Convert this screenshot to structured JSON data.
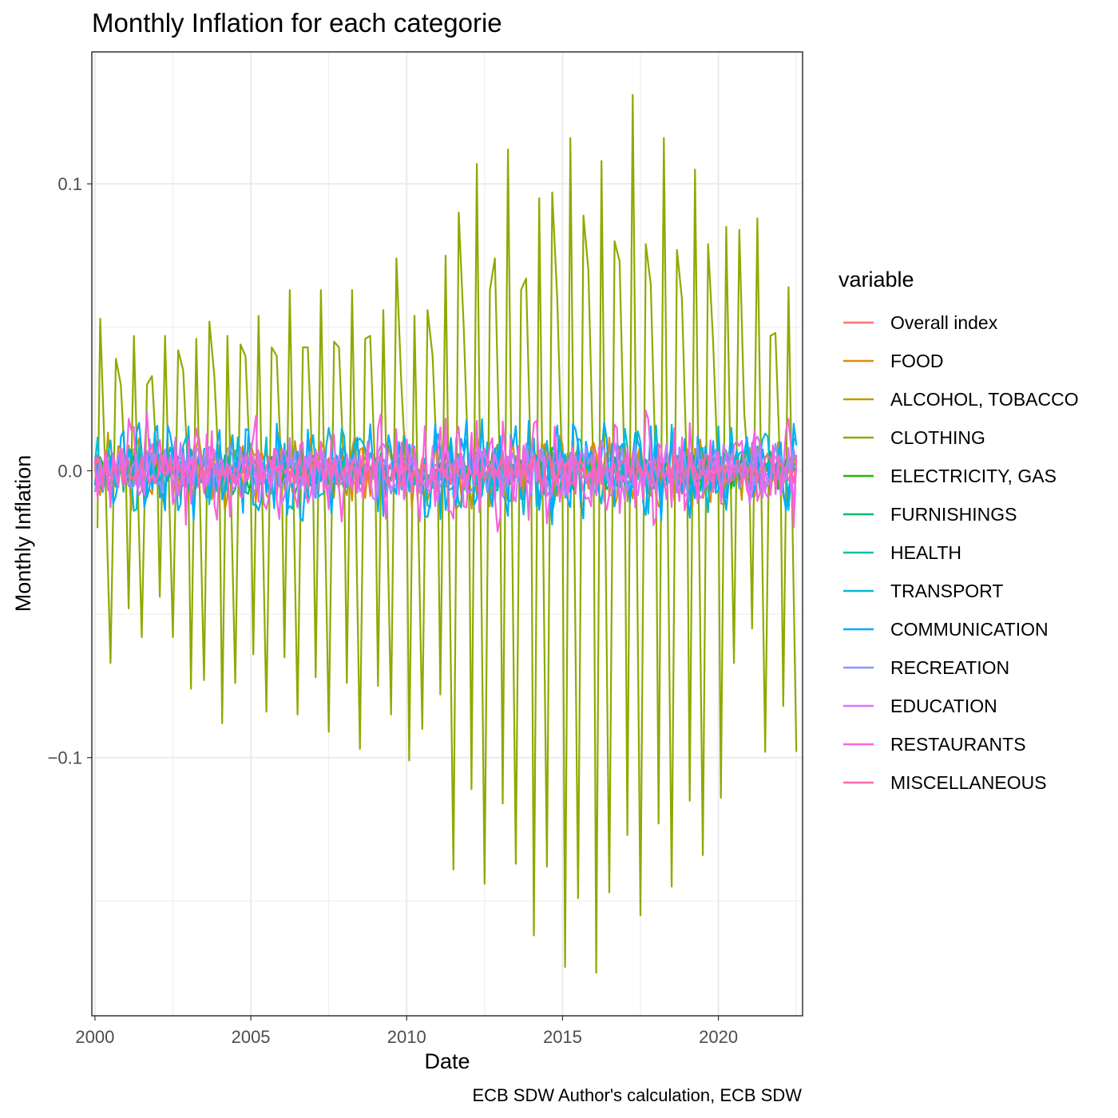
{
  "chart_data": {
    "type": "line",
    "title": "Monthly Inflation for each categorie",
    "xlabel": "Date",
    "ylabel": "Monthly Inflation",
    "caption": "ECB SDW Author's calculation, ECB SDW",
    "legend_title": "variable",
    "legend_position": "right",
    "grid": true,
    "xlim": [
      1999.9,
      2022.7
    ],
    "ylim": [
      -0.19,
      0.146
    ],
    "x_ticks": [
      2000,
      2005,
      2010,
      2015,
      2020
    ],
    "x_tick_labels": [
      "2000",
      "2005",
      "2010",
      "2015",
      "2020"
    ],
    "y_ticks": [
      -0.1,
      0.0,
      0.1
    ],
    "y_tick_labels": [
      "−0.1",
      "0.0",
      "0.1"
    ],
    "x_range": [
      2000.0,
      2022.5
    ],
    "series": [
      {
        "name": "Overall index",
        "color": "#F8766D",
        "amplitude": 0.004,
        "seed": 1
      },
      {
        "name": "FOOD",
        "color": "#E18A00",
        "amplitude": 0.01,
        "seed": 2
      },
      {
        "name": "ALCOHOL, TOBACCO",
        "color": "#BE9C00",
        "amplitude": 0.012,
        "seed": 3
      },
      {
        "name": "CLOTHING",
        "color": "#8CAB00",
        "amplitude": 0.05,
        "seed": 4,
        "points": [
          [
            2000.08,
            -0.02
          ],
          [
            2000.17,
            0.053
          ],
          [
            2000.33,
            0.0
          ],
          [
            2000.5,
            -0.067
          ],
          [
            2000.67,
            0.039
          ],
          [
            2000.83,
            0.03
          ],
          [
            2001.0,
            -0.005
          ],
          [
            2001.08,
            -0.048
          ],
          [
            2001.25,
            0.047
          ],
          [
            2001.5,
            -0.058
          ],
          [
            2001.67,
            0.03
          ],
          [
            2001.83,
            0.033
          ],
          [
            2002.0,
            0.0
          ],
          [
            2002.08,
            -0.044
          ],
          [
            2002.25,
            0.047
          ],
          [
            2002.5,
            -0.058
          ],
          [
            2002.67,
            0.042
          ],
          [
            2002.83,
            0.035
          ],
          [
            2003.0,
            -0.005
          ],
          [
            2003.08,
            -0.076
          ],
          [
            2003.25,
            0.046
          ],
          [
            2003.5,
            -0.073
          ],
          [
            2003.67,
            0.052
          ],
          [
            2003.83,
            0.033
          ],
          [
            2004.0,
            -0.005
          ],
          [
            2004.08,
            -0.088
          ],
          [
            2004.25,
            0.047
          ],
          [
            2004.5,
            -0.074
          ],
          [
            2004.67,
            0.044
          ],
          [
            2004.83,
            0.04
          ],
          [
            2005.0,
            -0.005
          ],
          [
            2005.08,
            -0.064
          ],
          [
            2005.25,
            0.054
          ],
          [
            2005.5,
            -0.084
          ],
          [
            2005.67,
            0.043
          ],
          [
            2005.83,
            0.04
          ],
          [
            2006.0,
            -0.005
          ],
          [
            2006.08,
            -0.065
          ],
          [
            2006.25,
            0.063
          ],
          [
            2006.5,
            -0.085
          ],
          [
            2006.67,
            0.043
          ],
          [
            2006.83,
            0.043
          ],
          [
            2007.0,
            -0.005
          ],
          [
            2007.08,
            -0.072
          ],
          [
            2007.25,
            0.063
          ],
          [
            2007.5,
            -0.091
          ],
          [
            2007.67,
            0.045
          ],
          [
            2007.83,
            0.043
          ],
          [
            2008.0,
            -0.005
          ],
          [
            2008.08,
            -0.074
          ],
          [
            2008.25,
            0.063
          ],
          [
            2008.5,
            -0.097
          ],
          [
            2008.67,
            0.046
          ],
          [
            2008.83,
            0.047
          ],
          [
            2009.0,
            -0.005
          ],
          [
            2009.08,
            -0.075
          ],
          [
            2009.25,
            0.056
          ],
          [
            2009.5,
            -0.085
          ],
          [
            2009.67,
            0.074
          ],
          [
            2009.83,
            0.03
          ],
          [
            2010.0,
            -0.005
          ],
          [
            2010.08,
            -0.101
          ],
          [
            2010.25,
            0.054
          ],
          [
            2010.5,
            -0.09
          ],
          [
            2010.67,
            0.056
          ],
          [
            2010.83,
            0.04
          ],
          [
            2011.0,
            -0.005
          ],
          [
            2011.08,
            -0.078
          ],
          [
            2011.25,
            0.075
          ],
          [
            2011.5,
            -0.139
          ],
          [
            2011.67,
            0.09
          ],
          [
            2011.83,
            0.05
          ],
          [
            2012.0,
            -0.005
          ],
          [
            2012.08,
            -0.111
          ],
          [
            2012.25,
            0.107
          ],
          [
            2012.5,
            -0.144
          ],
          [
            2012.67,
            0.063
          ],
          [
            2012.83,
            0.074
          ],
          [
            2013.0,
            -0.005
          ],
          [
            2013.08,
            -0.116
          ],
          [
            2013.25,
            0.112
          ],
          [
            2013.5,
            -0.137
          ],
          [
            2013.67,
            0.063
          ],
          [
            2013.83,
            0.067
          ],
          [
            2014.0,
            -0.005
          ],
          [
            2014.08,
            -0.162
          ],
          [
            2014.25,
            0.095
          ],
          [
            2014.5,
            -0.138
          ],
          [
            2014.67,
            0.097
          ],
          [
            2014.83,
            0.06
          ],
          [
            2015.0,
            -0.005
          ],
          [
            2015.08,
            -0.173
          ],
          [
            2015.25,
            0.116
          ],
          [
            2015.5,
            -0.149
          ],
          [
            2015.67,
            0.089
          ],
          [
            2015.83,
            0.07
          ],
          [
            2016.0,
            -0.005
          ],
          [
            2016.08,
            -0.175
          ],
          [
            2016.25,
            0.108
          ],
          [
            2016.5,
            -0.147
          ],
          [
            2016.67,
            0.08
          ],
          [
            2016.83,
            0.073
          ],
          [
            2017.0,
            -0.005
          ],
          [
            2017.08,
            -0.127
          ],
          [
            2017.25,
            0.131
          ],
          [
            2017.5,
            -0.155
          ],
          [
            2017.67,
            0.079
          ],
          [
            2017.83,
            0.065
          ],
          [
            2018.0,
            -0.005
          ],
          [
            2018.08,
            -0.123
          ],
          [
            2018.25,
            0.116
          ],
          [
            2018.5,
            -0.145
          ],
          [
            2018.67,
            0.077
          ],
          [
            2018.83,
            0.06
          ],
          [
            2019.0,
            -0.005
          ],
          [
            2019.08,
            -0.115
          ],
          [
            2019.25,
            0.105
          ],
          [
            2019.5,
            -0.134
          ],
          [
            2019.67,
            0.079
          ],
          [
            2019.83,
            0.045
          ],
          [
            2020.0,
            -0.005
          ],
          [
            2020.08,
            -0.114
          ],
          [
            2020.25,
            0.085
          ],
          [
            2020.5,
            -0.067
          ],
          [
            2020.67,
            0.084
          ],
          [
            2020.83,
            0.02
          ],
          [
            2021.0,
            -0.005
          ],
          [
            2021.08,
            -0.055
          ],
          [
            2021.25,
            0.088
          ],
          [
            2021.5,
            -0.098
          ],
          [
            2021.67,
            0.047
          ],
          [
            2021.83,
            0.048
          ],
          [
            2022.0,
            -0.005
          ],
          [
            2022.08,
            -0.082
          ],
          [
            2022.25,
            0.064
          ],
          [
            2022.5,
            -0.098
          ]
        ]
      },
      {
        "name": "ELECTRICITY, GAS",
        "color": "#24B700",
        "amplitude": 0.006,
        "seed": 5
      },
      {
        "name": "FURNISHINGS",
        "color": "#00BE70",
        "amplitude": 0.007,
        "seed": 6
      },
      {
        "name": "HEALTH",
        "color": "#00C1AB",
        "amplitude": 0.005,
        "seed": 7
      },
      {
        "name": "TRANSPORT",
        "color": "#00BBDA",
        "amplitude": 0.014,
        "seed": 8
      },
      {
        "name": "COMMUNICATION",
        "color": "#00ACFC",
        "amplitude": 0.016,
        "seed": 9
      },
      {
        "name": "RECREATION",
        "color": "#8B93FF",
        "amplitude": 0.008,
        "seed": 10
      },
      {
        "name": "EDUCATION",
        "color": "#D575FE",
        "amplitude": 0.01,
        "seed": 11
      },
      {
        "name": "RESTAURANTS",
        "color": "#F962DD",
        "amplitude": 0.018,
        "seed": 12
      },
      {
        "name": "MISCELLANEOUS",
        "color": "#FF65AC",
        "amplitude": 0.005,
        "seed": 13
      }
    ]
  }
}
